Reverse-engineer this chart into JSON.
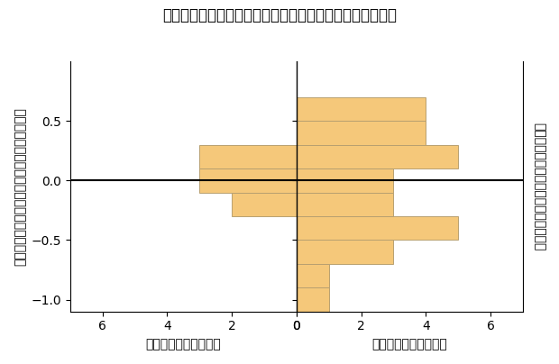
{
  "title": "ショートガンマ線バースト平面からの距離のヒストグラム",
  "ylabel_left": "キロノバを伴う短時間ガンマ線バーストの距離",
  "ylabel_right": "短時間ガンマ線バーストクラスの距離",
  "xlabel_left": "ガンマ線バーストの数",
  "xlabel_right": "ガンマ線バーストの数",
  "y_bins": [
    -1.1,
    -0.9,
    -0.7,
    -0.5,
    -0.3,
    -0.1,
    0.1,
    0.3,
    0.5,
    0.7,
    0.9
  ],
  "bin_centers": [
    -1.0,
    -0.8,
    -0.6,
    -0.4,
    -0.2,
    0.0,
    0.2,
    0.4,
    0.6,
    0.8
  ],
  "bin_width": 0.2,
  "left_counts": [
    0,
    0,
    0,
    0,
    2,
    3,
    3,
    0,
    0,
    0
  ],
  "right_counts": [
    1,
    1,
    3,
    5,
    3,
    3,
    5,
    4,
    4,
    0
  ],
  "bar_color": "#F5C87A",
  "bar_edgecolor": "#B8A070",
  "xlim_left": 7,
  "xlim_right": 7,
  "ylim": [
    -1.1,
    1.0
  ],
  "yticks": [
    -1.0,
    -0.5,
    0.0,
    0.5
  ],
  "background_color": "#ffffff",
  "title_fontsize": 12,
  "label_fontsize": 10,
  "tick_fontsize": 10,
  "axline_lw": 1.5
}
